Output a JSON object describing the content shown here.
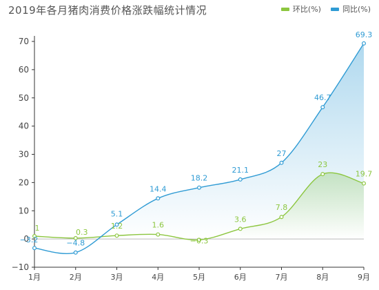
{
  "chart_data": {
    "type": "line",
    "title": "2019年各月猪肉消费价格涨跌幅统计情况",
    "categories": [
      "1月",
      "2月",
      "3月",
      "4月",
      "5月",
      "6月",
      "7月",
      "8月",
      "9月"
    ],
    "series": [
      {
        "name": "环比(%)",
        "color": "#8cc63f",
        "values": [
          1,
          0.3,
          1.2,
          1.6,
          -0.3,
          3.6,
          7.8,
          23,
          19.7
        ],
        "labels": [
          "1",
          "0.3",
          "1.2",
          "1.6",
          "−0.3",
          "3.6",
          "7.8",
          "23",
          "19.7"
        ]
      },
      {
        "name": "同比(%)",
        "color": "#2f9bd4",
        "values": [
          -3.2,
          -4.8,
          5.1,
          14.4,
          18.2,
          21.1,
          27,
          46.7,
          69.3
        ],
        "labels": [
          "−3.2",
          "−4.8",
          "5.1",
          "14.4",
          "18.2",
          "21.1",
          "27",
          "46.7",
          "69.3"
        ]
      }
    ],
    "yticks": [
      "−10",
      "0",
      "10",
      "20",
      "30",
      "40",
      "50",
      "60",
      "70"
    ],
    "ylim": [
      -10,
      70
    ],
    "grid": false,
    "legend": "top-right",
    "xlabel": "",
    "ylabel": ""
  }
}
